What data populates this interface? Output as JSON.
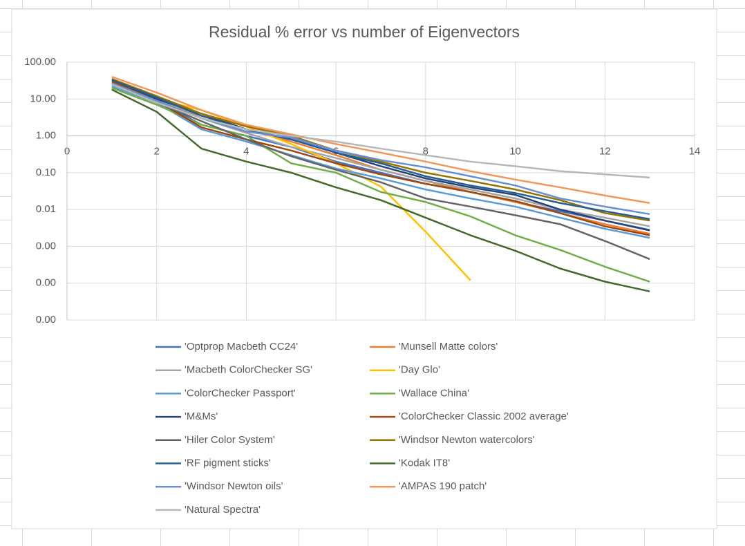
{
  "chart_data": {
    "type": "line",
    "title": "Residual % error vs number of Eigenvectors",
    "log_y": true,
    "grid": true,
    "legend": "bottom",
    "x": [
      1,
      2,
      3,
      4,
      5,
      6,
      7,
      8,
      9,
      10,
      11,
      12,
      13
    ],
    "xlim": [
      0,
      14
    ],
    "xticks": [
      0,
      2,
      4,
      6,
      8,
      10,
      12,
      14
    ],
    "ylim": [
      1e-05,
      100
    ],
    "yticks": [
      {
        "value": 100,
        "label": "100.00"
      },
      {
        "value": 10,
        "label": "10.00"
      },
      {
        "value": 1,
        "label": "1.00"
      },
      {
        "value": 0.1,
        "label": "0.10"
      },
      {
        "value": 0.01,
        "label": "0.01"
      },
      {
        "value": 0.001,
        "label": "0.00"
      },
      {
        "value": 0.0001,
        "label": "0.00"
      },
      {
        "value": 1e-05,
        "label": "0.00"
      }
    ],
    "series": [
      {
        "name": "'Optprop Macbeth CC24'",
        "color": "#4472c4",
        "values": [
          25,
          9,
          2,
          1,
          0.5,
          0.2,
          0.1,
          0.05,
          0.03,
          0.016,
          0.009,
          0.005,
          0.0028
        ]
      },
      {
        "name": "'Munsell Matte colors'",
        "color": "#ed7d31",
        "values": [
          35,
          12,
          3,
          1.5,
          0.7,
          0.3,
          0.12,
          0.06,
          0.03,
          0.016,
          0.008,
          0.004,
          0.0022
        ]
      },
      {
        "name": "'Macbeth ColorChecker SG'",
        "color": "#a5a5a5",
        "values": [
          28,
          10,
          3,
          1.2,
          0.5,
          0.25,
          0.12,
          0.06,
          0.035,
          0.02,
          0.01,
          0.006,
          0.0035
        ]
      },
      {
        "name": "'Day Glo'",
        "color": "#ffc000",
        "values": [
          30,
          10,
          5,
          1.8,
          0.6,
          0.18,
          0.042,
          0.0025,
          0.00012,
          null,
          null,
          null,
          null
        ]
      },
      {
        "name": "'ColorChecker Passport'",
        "color": "#5b9bd5",
        "values": [
          22,
          8,
          1.5,
          0.7,
          0.3,
          0.13,
          0.07,
          0.035,
          0.02,
          0.012,
          0.006,
          0.003,
          0.0017
        ]
      },
      {
        "name": "'Wallace China'",
        "color": "#70ad47",
        "values": [
          20,
          7,
          2,
          1,
          0.18,
          0.1,
          0.03,
          0.016,
          0.0065,
          0.002,
          0.0008,
          0.00028,
          0.00011
        ]
      },
      {
        "name": "'M&Ms'",
        "color": "#264478",
        "values": [
          30,
          10,
          4,
          1.5,
          0.8,
          0.35,
          0.15,
          0.07,
          0.04,
          0.025,
          0.01,
          0.005,
          0.0027
        ]
      },
      {
        "name": "'ColorChecker Classic 2002 average'",
        "color": "#9e480e",
        "values": [
          30,
          9,
          1.7,
          0.8,
          0.4,
          0.18,
          0.09,
          0.05,
          0.03,
          0.017,
          0.008,
          0.0035,
          0.002
        ]
      },
      {
        "name": "'Hiler Color System'",
        "color": "#636363",
        "values": [
          25,
          8,
          2.5,
          0.8,
          0.28,
          0.12,
          0.055,
          0.02,
          0.012,
          0.007,
          0.004,
          0.0014,
          0.00045
        ]
      },
      {
        "name": "'Windsor Newton watercolors'",
        "color": "#997300",
        "values": [
          35,
          12,
          4,
          1.8,
          1,
          0.4,
          0.2,
          0.1,
          0.06,
          0.035,
          0.018,
          0.008,
          0.005
        ]
      },
      {
        "name": "'RF pigment sticks'",
        "color": "#255e91",
        "values": [
          33,
          11,
          3.5,
          1.5,
          0.8,
          0.35,
          0.18,
          0.08,
          0.045,
          0.028,
          0.015,
          0.009,
          0.0055
        ]
      },
      {
        "name": "'Kodak IT8'",
        "color": "#43682b",
        "values": [
          18,
          4.5,
          0.45,
          0.2,
          0.1,
          0.04,
          0.018,
          0.006,
          0.002,
          0.00076,
          0.00025,
          0.00011,
          6e-05
        ]
      },
      {
        "name": "'Windsor Newton oils'",
        "color": "#698ed0",
        "values": [
          27,
          9,
          3,
          1.3,
          0.9,
          0.4,
          0.22,
          0.14,
          0.08,
          0.045,
          0.02,
          0.012,
          0.0075
        ]
      },
      {
        "name": "'AMPAS 190 patch'",
        "color": "#f1975a",
        "values": [
          40,
          15,
          5,
          2,
          1.1,
          0.6,
          0.35,
          0.2,
          0.11,
          0.065,
          0.04,
          0.024,
          0.015
        ]
      },
      {
        "name": "'Natural Spectra'",
        "color": "#b7b7b7",
        "values": [
          25,
          8,
          3,
          1.5,
          1,
          0.7,
          0.45,
          0.3,
          0.2,
          0.15,
          0.11,
          0.09,
          0.074
        ]
      }
    ]
  }
}
